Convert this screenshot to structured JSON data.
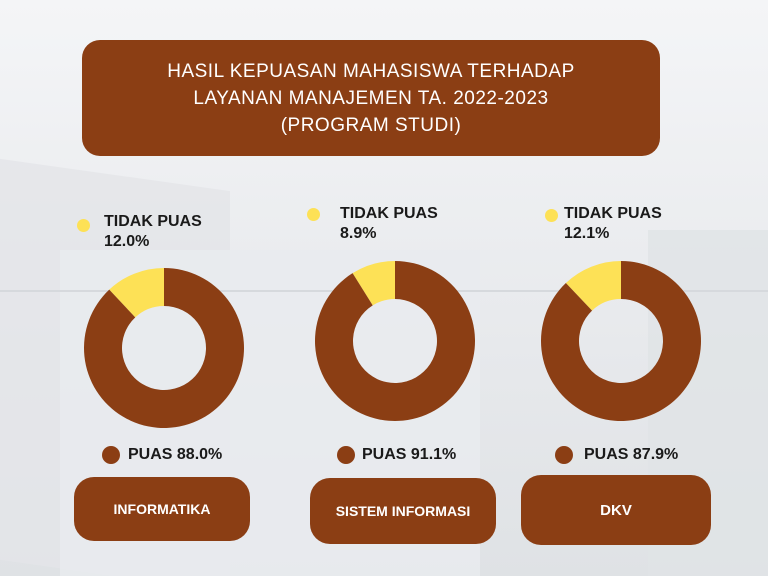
{
  "title": {
    "line1": "HASIL KEPUASAN MAHASISWA TERHADAP",
    "line2": "LAYANAN MANAJEMEN TA. 2022-2023",
    "line3": "(PROGRAM STUDI)"
  },
  "colors": {
    "puas": "#8b3e14",
    "tidak_puas": "#fde156",
    "background": "#eef0f3"
  },
  "chart_data": [
    {
      "type": "pie",
      "title": "INFORMATIKA",
      "categories": [
        "TIDAK PUAS",
        "PUAS"
      ],
      "values": [
        12.0,
        88.0
      ],
      "labels": {
        "tidak_name": "TIDAK PUAS",
        "tidak_value": "12.0%",
        "puas": "PUAS 88.0%"
      }
    },
    {
      "type": "pie",
      "title": "SISTEM INFORMASI",
      "categories": [
        "TIDAK PUAS",
        "PUAS"
      ],
      "values": [
        8.9,
        91.1
      ],
      "labels": {
        "tidak_name": "TIDAK PUAS",
        "tidak_value": "8.9%",
        "puas": "PUAS 91.1%"
      }
    },
    {
      "type": "pie",
      "title": "DKV",
      "categories": [
        "TIDAK PUAS",
        "PUAS"
      ],
      "values": [
        12.1,
        87.9
      ],
      "labels": {
        "tidak_name": "TIDAK PUAS",
        "tidak_value": "12.1%",
        "puas": "PUAS 87.9%"
      }
    }
  ]
}
